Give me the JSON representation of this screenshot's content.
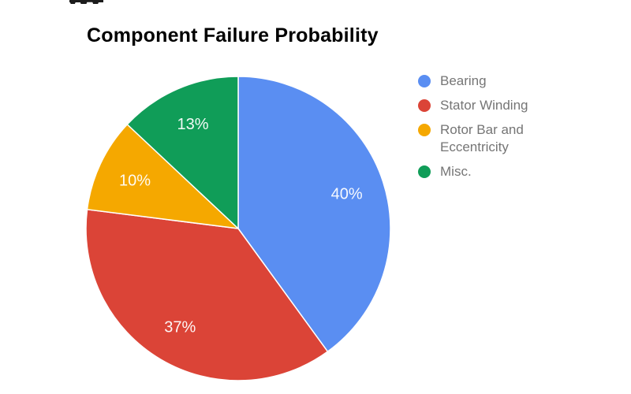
{
  "page": {
    "background_color": "#ffffff"
  },
  "chart_data": {
    "type": "pie",
    "title": "Component Failure Probability",
    "title_color": "#000000",
    "start_angle_deg": 0,
    "direction": "clockwise",
    "legend_position": "right",
    "slice_label_color": "#ffffff",
    "categories": [
      "Bearing",
      "Stator Winding",
      "Rotor Bar and Eccentricity",
      "Misc."
    ],
    "values": [
      40,
      37,
      10,
      13
    ],
    "slices": [
      {
        "label": "Bearing",
        "value": 40,
        "display": "40%",
        "color": "#5a8ef2"
      },
      {
        "label": "Stator Winding",
        "value": 37,
        "display": "37%",
        "color": "#db4437"
      },
      {
        "label": "Rotor Bar and Eccentricity",
        "value": 10,
        "display": "10%",
        "color": "#f5a800"
      },
      {
        "label": "Misc.",
        "value": 13,
        "display": "13%",
        "color": "#109d58"
      }
    ]
  },
  "legend": {
    "text_color": "#757575",
    "items": [
      {
        "label": "Bearing",
        "color": "#5a8ef2"
      },
      {
        "label": "Stator Winding",
        "color": "#db4437"
      },
      {
        "label": "Rotor Bar and Eccentricity",
        "color": "#f5a800"
      },
      {
        "label": "Misc.",
        "color": "#109d58"
      }
    ]
  }
}
